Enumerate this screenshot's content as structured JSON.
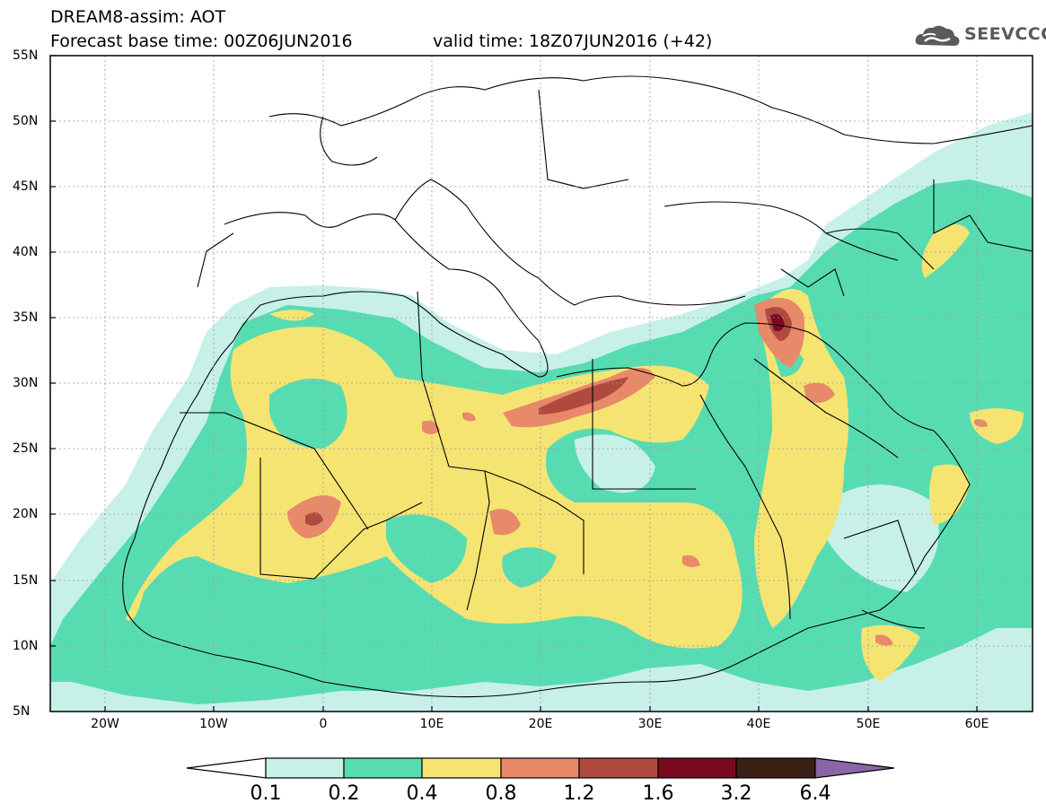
{
  "header": {
    "title": "DREAM8-assim: AOT",
    "base_time": "Forecast base time: 00Z06JUN2016",
    "valid_time": "valid time: 18Z07JUN2016 (+42)"
  },
  "logo": {
    "text": "SEEVCCC",
    "icon": "cloud-icon"
  },
  "axes": {
    "lat_labels": [
      "55N",
      "50N",
      "45N",
      "40N",
      "35N",
      "30N",
      "25N",
      "20N",
      "15N",
      "10N",
      "5N"
    ],
    "lon_labels": [
      "20W",
      "10W",
      "0",
      "10E",
      "20E",
      "30E",
      "40E",
      "50E",
      "60E"
    ]
  },
  "colorbar": {
    "labels": [
      "0.1",
      "0.2",
      "0.4",
      "0.8",
      "1.2",
      "1.6",
      "3.2",
      "6.4"
    ],
    "colors": [
      "#ffffff",
      "#c6f0e8",
      "#57dcb2",
      "#f5e472",
      "#e8896a",
      "#b04a3e",
      "#7a0a20",
      "#3a1f12",
      "#8a65a8"
    ]
  },
  "colors": {
    "c1": "#c6f0e8",
    "c2": "#57dcb2",
    "c3": "#f5e472",
    "c4": "#e8896a",
    "c5": "#b04a3e",
    "c6": "#7a0a20"
  }
}
